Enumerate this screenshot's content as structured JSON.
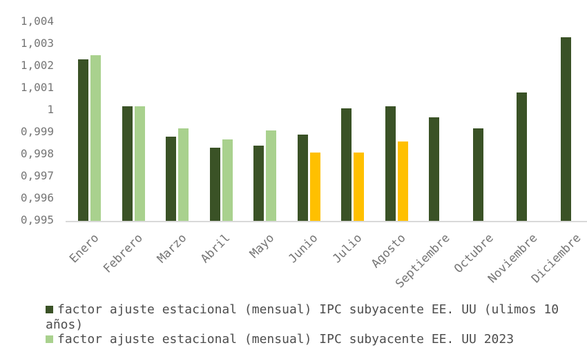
{
  "chart_data": {
    "type": "bar",
    "title": "",
    "xlabel": "",
    "ylabel": "",
    "grid": false,
    "legend_position": "bottom",
    "categories": [
      "Enero",
      "Febrero",
      "Marzo",
      "Abril",
      "Mayo",
      "Junio",
      "Julio",
      "Agosto",
      "Septiembre",
      "Octubre",
      "Noviembre",
      "Diciembre"
    ],
    "series": [
      {
        "name": "factor ajuste estacional (mensual) IPC subyacente EE. UU (ulimos 10 años)",
        "color": "#3A5226",
        "values": [
          1.0023,
          1.0002,
          0.9988,
          0.9983,
          0.9984,
          0.9989,
          1.0001,
          1.0002,
          0.9997,
          0.9992,
          1.0008,
          1.0033
        ]
      },
      {
        "name": "factor ajuste estacional (mensual) IPC subyacente EE. UU 2023",
        "color": "#A9D18E",
        "values": [
          1.0025,
          1.0002,
          0.9992,
          0.9987,
          0.9991,
          0.9981,
          0.9981,
          0.9986,
          null,
          null,
          null,
          null
        ],
        "point_colors": [
          "#A9D18E",
          "#A9D18E",
          "#A9D18E",
          "#A9D18E",
          "#A9D18E",
          "#FFC000",
          "#FFC000",
          "#FFC000",
          null,
          null,
          null,
          null
        ]
      }
    ],
    "ylim": [
      0.995,
      1.004
    ],
    "y_tick_step": 0.001,
    "y_tick_labels": [
      "1,004",
      "1,003",
      "1,002",
      "1,001",
      "1",
      "0,999",
      "0,998",
      "0,997",
      "0,996",
      "0,995"
    ]
  },
  "legend": {
    "items": [
      {
        "label": "factor ajuste estacional (mensual) IPC subyacente EE. UU (ulimos 10 años)",
        "color": "#3A5226"
      },
      {
        "label": "factor ajuste estacional (mensual) IPC subyacente EE. UU 2023",
        "color": "#A9D18E"
      }
    ]
  },
  "colors": {
    "background": "#FFFFFF",
    "axis_line": "#D9D9D9",
    "tick_text": "#757575",
    "legend_text": "#4D4D4D",
    "bar_dark_green": "#3A5226",
    "bar_light_green": "#A9D18E",
    "bar_yellow": "#FFC000"
  }
}
